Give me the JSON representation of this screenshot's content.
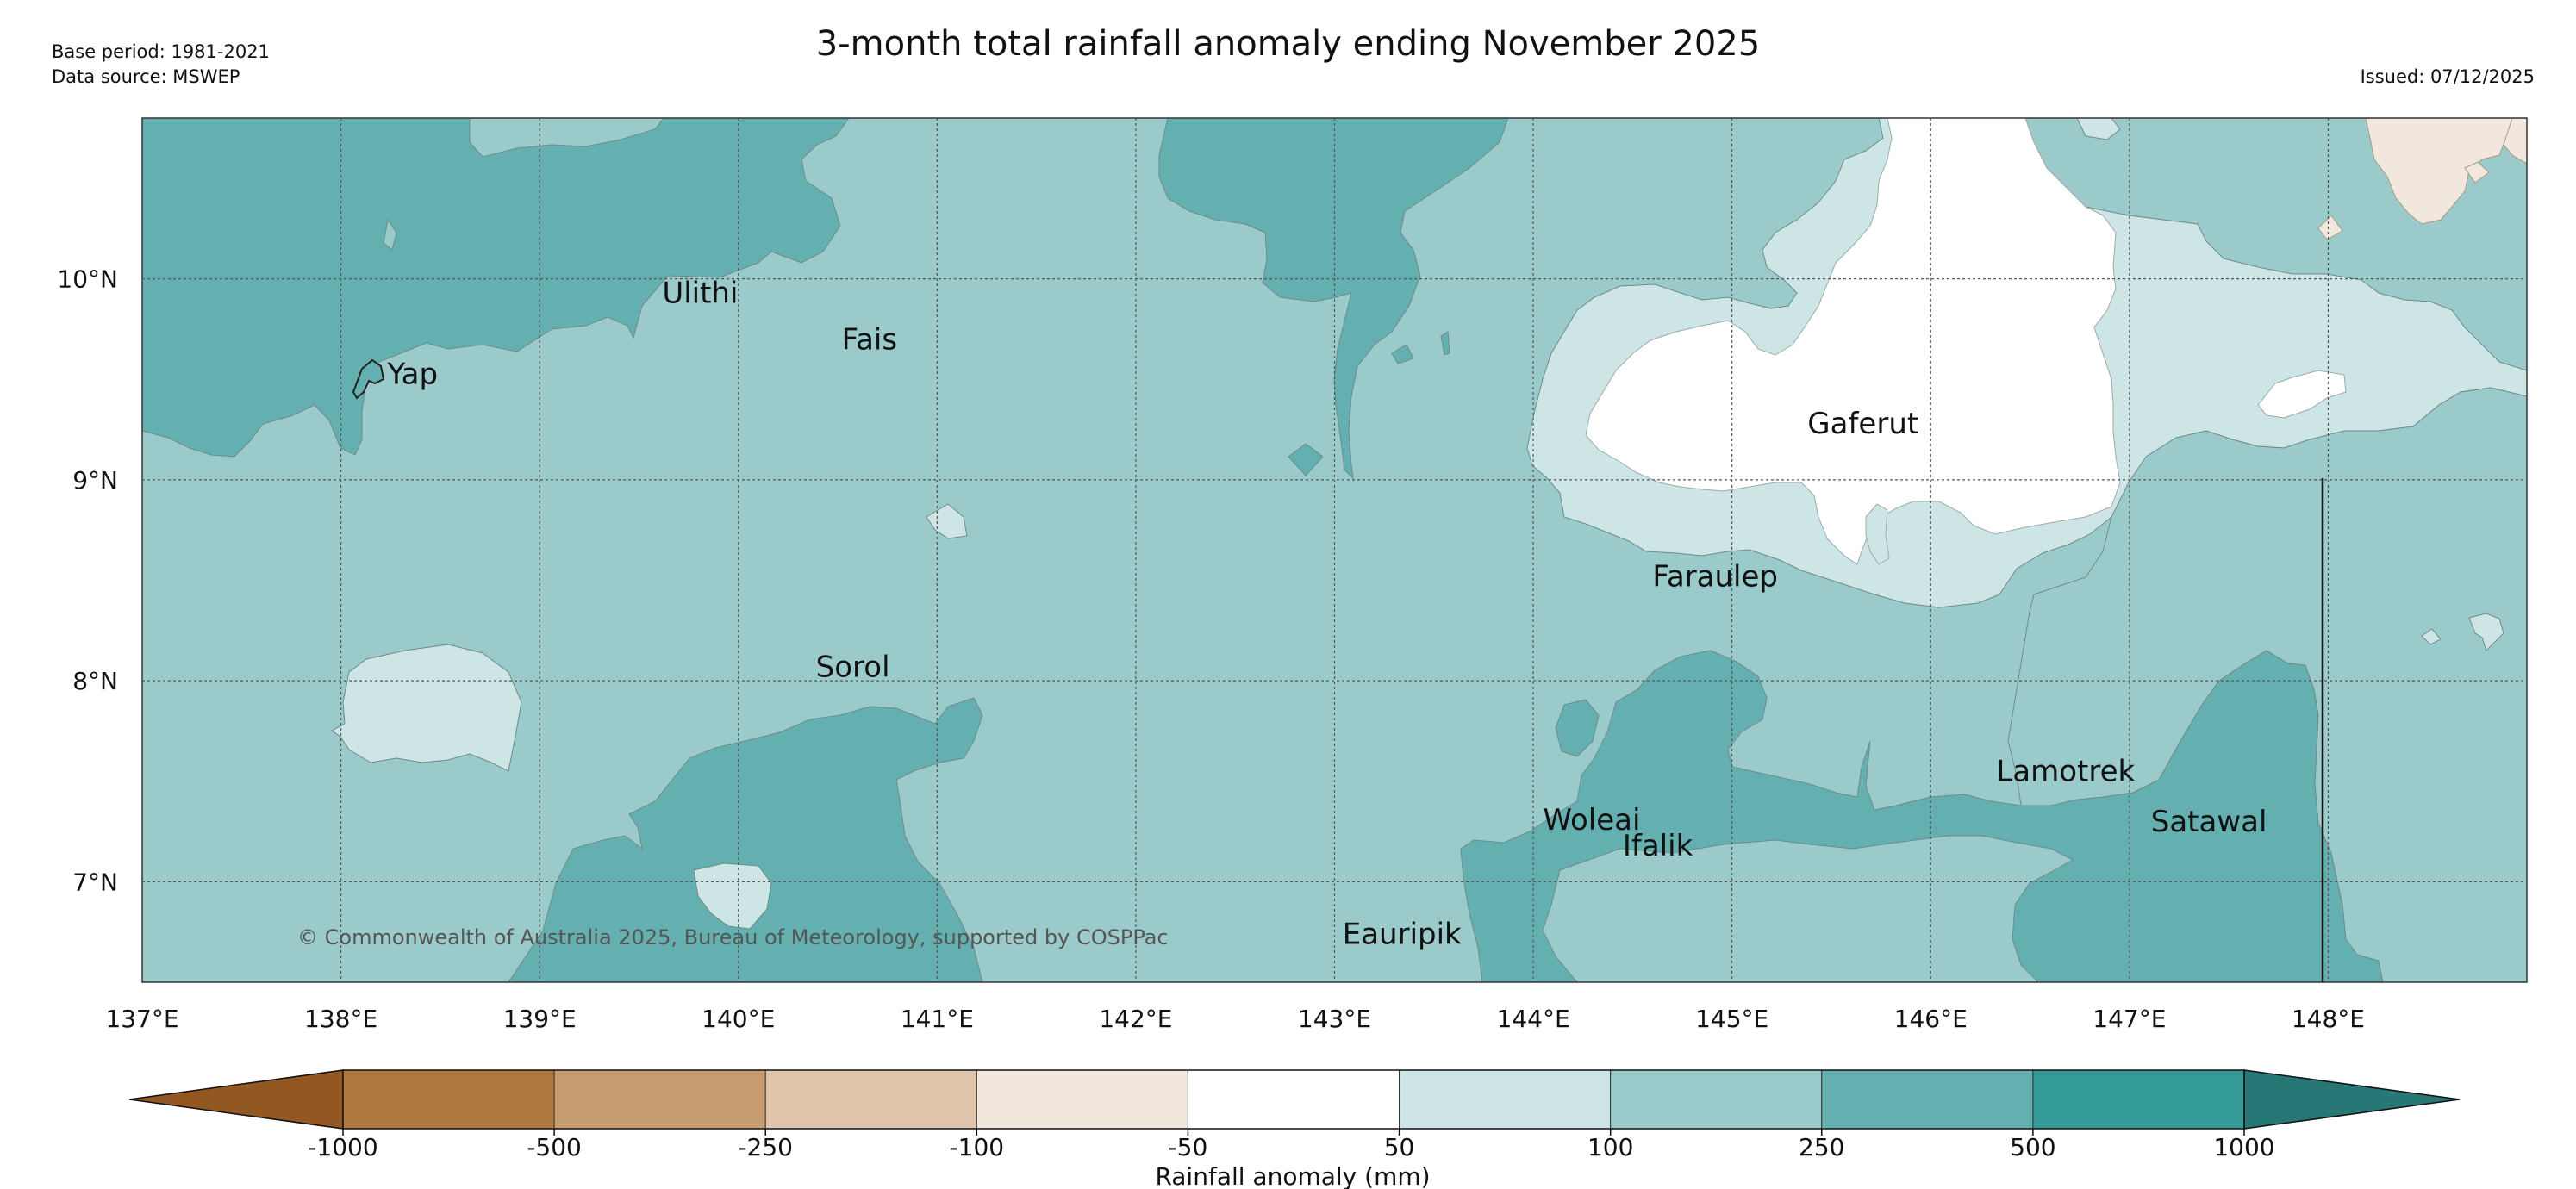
{
  "header": {
    "title": "3-month total rainfall anomaly ending November 2025",
    "base_period": "Base period: 1981-2021",
    "data_source": "Data source: MSWEP",
    "issued": "Issued: 07/12/2025"
  },
  "map": {
    "lon_range": [
      137,
      149
    ],
    "lat_range": [
      6.5,
      10.8
    ],
    "lon_ticks": [
      "137°E",
      "138°E",
      "139°E",
      "140°E",
      "141°E",
      "142°E",
      "143°E",
      "144°E",
      "145°E",
      "146°E",
      "147°E",
      "148°E"
    ],
    "lat_ticks": [
      "10°N",
      "9°N",
      "8°N",
      "7°N"
    ],
    "places": [
      {
        "name": "Yap"
      },
      {
        "name": "Ulithi"
      },
      {
        "name": "Fais"
      },
      {
        "name": "Sorol"
      },
      {
        "name": "Gaferut"
      },
      {
        "name": "Faraulep"
      },
      {
        "name": "Woleai"
      },
      {
        "name": "Ifalik"
      },
      {
        "name": "Lamotrek"
      },
      {
        "name": "Satawal"
      },
      {
        "name": "Eauripik"
      }
    ],
    "copyright": "© Commonwealth of Australia 2025, Bureau of Meteorology, supported by COSPPac"
  },
  "colorbar": {
    "label": "Rainfall anomaly (mm)",
    "ticks": [
      "-1000",
      "-500",
      "-250",
      "-100",
      "-50",
      "50",
      "100",
      "250",
      "500",
      "1000"
    ],
    "colors": [
      "#935722",
      "#b07a3e",
      "#c79c71",
      "#e0c4ac",
      "#f2e7dd",
      "#ffffff",
      "#cde6e5",
      "#9acbca",
      "#64b0b0",
      "#339a97",
      "#277776"
    ]
  }
}
